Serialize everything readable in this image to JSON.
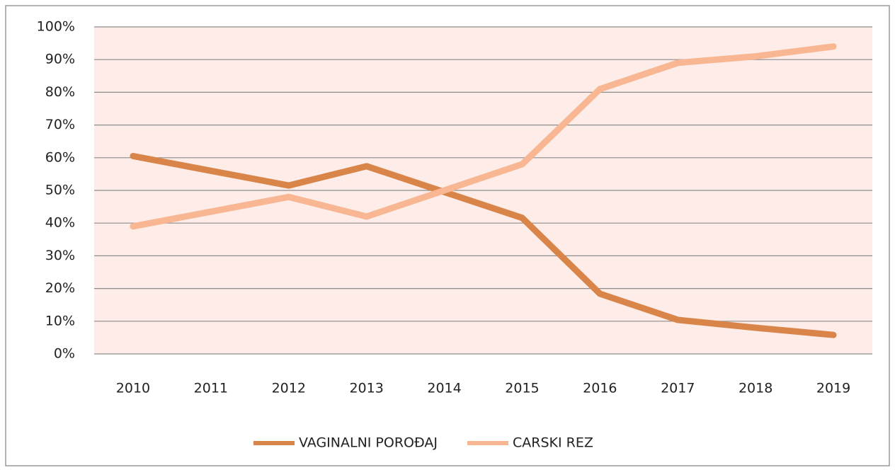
{
  "chart_data": {
    "type": "line",
    "categories": [
      "2010",
      "2011",
      "2012",
      "2013",
      "2014",
      "2015",
      "2016",
      "2017",
      "2018",
      "2019"
    ],
    "series": [
      {
        "name": "VAGINALNI POROĐAJ",
        "color": "#d9854a",
        "values": [
          60.5,
          56,
          51.5,
          57.4,
          49.5,
          41.6,
          18.4,
          10.4,
          8,
          5.8
        ]
      },
      {
        "name": "CARSKI REZ",
        "color": "#f8b692",
        "values": [
          39,
          43.5,
          48,
          42,
          50,
          58,
          81,
          89,
          91,
          94
        ]
      }
    ],
    "ylim": [
      0,
      100
    ],
    "yticks": [
      {
        "value": 0,
        "label": "0%"
      },
      {
        "value": 10,
        "label": "10%"
      },
      {
        "value": 20,
        "label": "20%"
      },
      {
        "value": 30,
        "label": "30%"
      },
      {
        "value": 40,
        "label": "40%"
      },
      {
        "value": 50,
        "label": "50%"
      },
      {
        "value": 60,
        "label": "60%"
      },
      {
        "value": 70,
        "label": "70%"
      },
      {
        "value": 80,
        "label": "80%"
      },
      {
        "value": 90,
        "label": "90%"
      },
      {
        "value": 100,
        "label": "100%"
      }
    ],
    "grid": true,
    "legend": "bottom"
  }
}
